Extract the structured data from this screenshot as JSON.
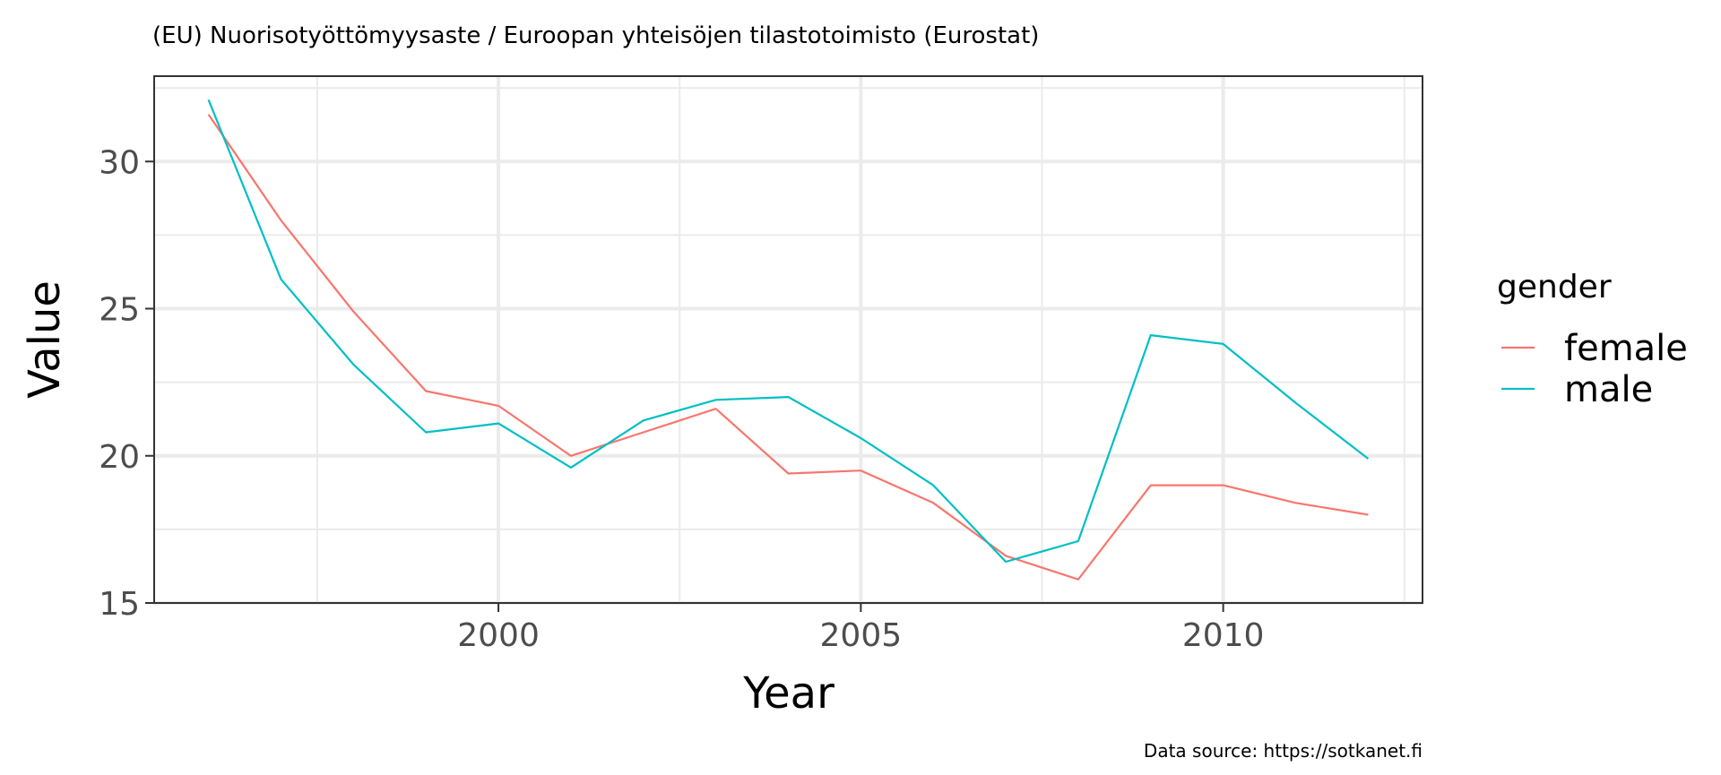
{
  "chart_data": {
    "type": "line",
    "title": "(EU) Nuorisotyöttömyysaste / Euroopan yhteisöjen tilastotoimisto (Eurostat)",
    "xlabel": "Year",
    "ylabel": "Value",
    "x": [
      1996,
      1997,
      1998,
      1999,
      2000,
      2001,
      2002,
      2003,
      2004,
      2005,
      2006,
      2007,
      2008,
      2009,
      2010,
      2011,
      2012
    ],
    "xlim": [
      1995.25,
      2012.75
    ],
    "ylim": [
      15,
      32.9
    ],
    "xticks": [
      2000,
      2005,
      2010
    ],
    "xtick_labels": [
      "2000",
      "2005",
      "2010"
    ],
    "yticks": [
      15,
      20,
      25,
      30
    ],
    "ytick_labels": [
      "15",
      "20",
      "25",
      "30"
    ],
    "grid": true,
    "legend": {
      "title": "gender",
      "position": "right"
    },
    "series": [
      {
        "name": "female",
        "color": "#f8766d",
        "values": [
          31.6,
          28.0,
          24.9,
          22.2,
          21.7,
          20.0,
          20.8,
          21.6,
          19.4,
          19.5,
          18.4,
          16.6,
          15.8,
          19.0,
          19.0,
          18.4,
          18.0
        ]
      },
      {
        "name": "male",
        "color": "#00bfc4",
        "values": [
          32.1,
          26.0,
          23.1,
          20.8,
          21.1,
          19.6,
          21.2,
          21.9,
          22.0,
          20.6,
          19.0,
          16.4,
          17.1,
          24.1,
          23.8,
          21.8,
          19.9
        ]
      }
    ],
    "caption": "Data source: https://sotkanet.fi"
  }
}
